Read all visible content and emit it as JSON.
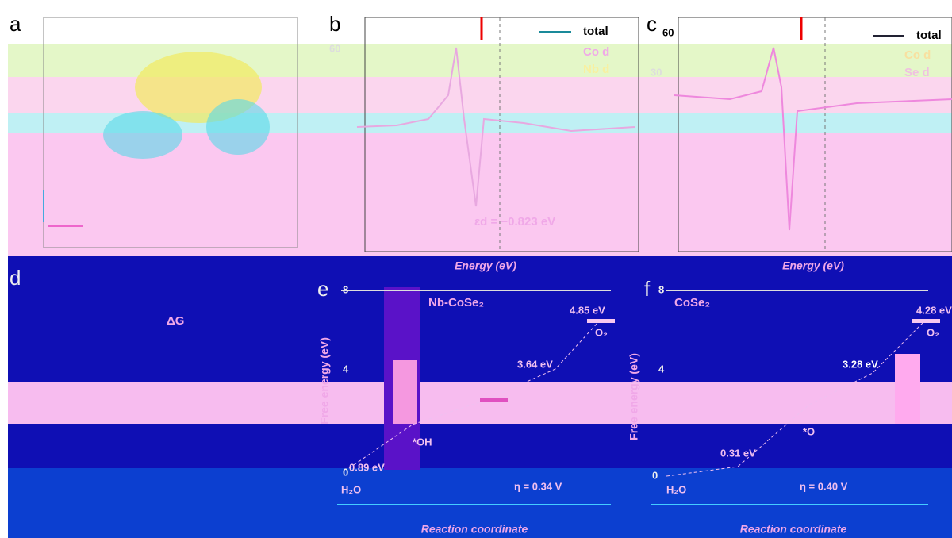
{
  "panels": {
    "a": {
      "label": "a"
    },
    "b": {
      "label": "b",
      "legend": [
        "total",
        "Co d",
        "Nb d"
      ],
      "ytick": "60",
      "annotation": "εd = −0.823 eV",
      "x_label": "Energy (eV)"
    },
    "c": {
      "label": "c",
      "legend": [
        "total",
        "Co d",
        "Se d"
      ],
      "yticks": [
        "60",
        "30"
      ],
      "x_label": "Energy (eV)"
    },
    "d": {
      "label": "d",
      "annotation": "ΔG"
    },
    "e": {
      "label": "e",
      "title": "Nb-CoSe₂",
      "y_label": "Free energy (eV)",
      "yticks": [
        "8",
        "4",
        "0"
      ],
      "levels": [
        "4.85 eV",
        "3.64 eV",
        "0.89 eV"
      ],
      "species": [
        "O₂",
        "*OH",
        "H₂O"
      ],
      "overpotential": "η = 0.34 V",
      "x_label": "Reaction coordinate"
    },
    "f": {
      "label": "f",
      "title": "CoSe₂",
      "y_label": "Free energy (eV)",
      "yticks": [
        "8",
        "4",
        "0"
      ],
      "levels": [
        "4.28 eV",
        "3.28 eV",
        "0.31 eV"
      ],
      "species": [
        "O₂",
        "*O",
        "H₂O"
      ],
      "overpotential": "η = 0.40 V",
      "x_label": "Reaction coordinate"
    }
  }
}
